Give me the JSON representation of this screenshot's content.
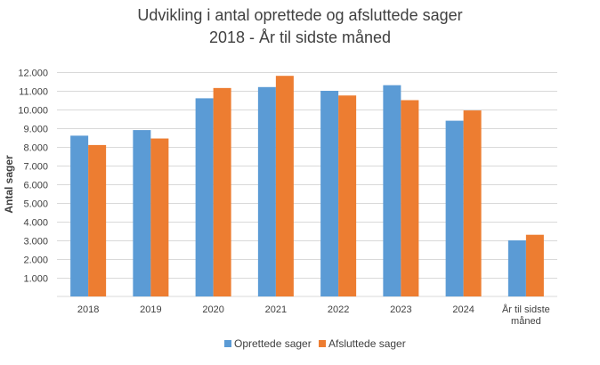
{
  "chart_data": {
    "type": "bar",
    "title": [
      "Udvikling i antal oprettede og afsluttede sager",
      "2018 - År til sidste måned"
    ],
    "ylabel": "Antal sager",
    "xlabel": "",
    "categories": [
      "2018",
      "2019",
      "2020",
      "2021",
      "2022",
      "2023",
      "2024",
      [
        "År til sidste",
        "måned"
      ]
    ],
    "ylim": [
      0,
      12000
    ],
    "yticks": [
      "1.000",
      "2.000",
      "3.000",
      "4.000",
      "5.000",
      "6.000",
      "7.000",
      "8.000",
      "9.000",
      "10.000",
      "11.000",
      "12.000"
    ],
    "ytick_values": [
      1000,
      2000,
      3000,
      4000,
      5000,
      6000,
      7000,
      8000,
      9000,
      10000,
      11000,
      12000
    ],
    "grid": true,
    "legend_position": "bottom",
    "series": [
      {
        "name": "Oprettede sager",
        "color": "#5b9bd5",
        "values": [
          8600,
          8900,
          10600,
          11200,
          11000,
          11300,
          9400,
          3000
        ]
      },
      {
        "name": "Afsluttede sager",
        "color": "#ed7d31",
        "values": [
          8100,
          8450,
          11150,
          11800,
          10750,
          10500,
          9950,
          3300
        ]
      }
    ]
  }
}
